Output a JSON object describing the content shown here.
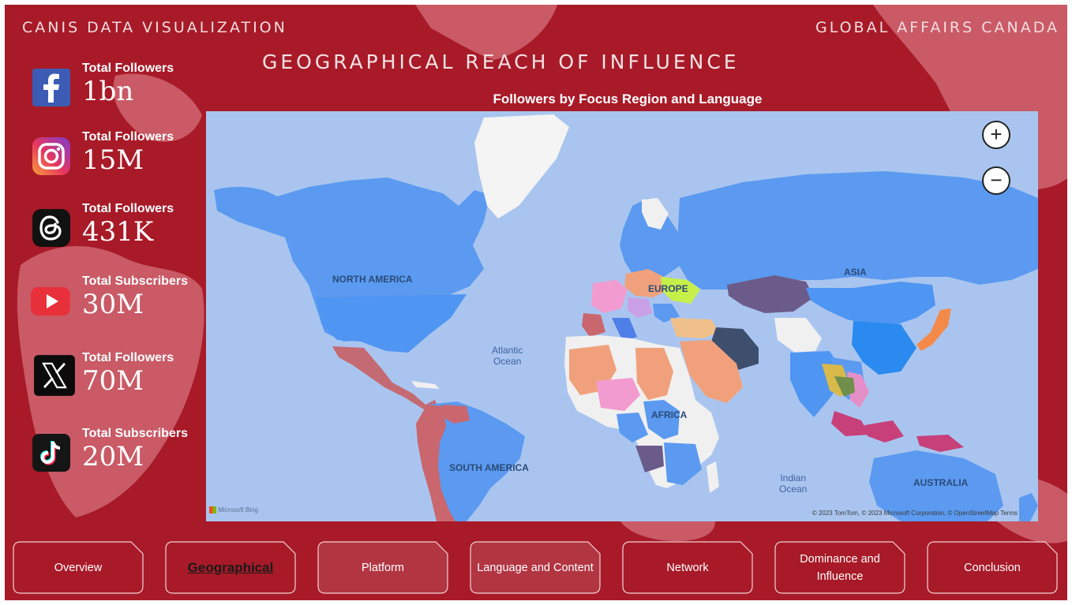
{
  "header": {
    "left_title": "Canis Data Visualization",
    "right_title": "Global Affairs Canada",
    "page_title": "Geographical Reach of Influence"
  },
  "stats": [
    {
      "platform": "facebook",
      "icon": "facebook-icon",
      "label": "Total Followers",
      "value": "1bn"
    },
    {
      "platform": "instagram",
      "icon": "instagram-icon",
      "label": "Total Followers",
      "value": "15M"
    },
    {
      "platform": "threads",
      "icon": "threads-icon",
      "label": "Total Followers",
      "value": "431K"
    },
    {
      "platform": "youtube",
      "icon": "youtube-icon",
      "label": "Total Subscribers",
      "value": "30M"
    },
    {
      "platform": "x",
      "icon": "x-icon",
      "label": "Total Followers",
      "value": "70M"
    },
    {
      "platform": "tiktok",
      "icon": "tiktok-icon",
      "label": "Total Subscribers",
      "value": "20M"
    }
  ],
  "map": {
    "title": "Followers by Focus Region and Language",
    "regions": {
      "north_america": "NORTH AMERICA",
      "south_america": "SOUTH AMERICA",
      "europe": "EUROPE",
      "africa": "AFRICA",
      "asia": "ASIA",
      "australia": "AUSTRALIA"
    },
    "oceans": {
      "atlantic_1": "Atlantic",
      "atlantic_2": "Ocean",
      "indian_1": "Indian",
      "indian_2": "Ocean"
    },
    "zoom_in": "+",
    "zoom_out": "−",
    "provider": "Microsoft Bing",
    "attribution": "© 2023 TomTom, © 2023 Microsoft Corporation, © OpenStreetMap  Terms"
  },
  "colors": {
    "background": "#a81a28",
    "ocean": "#a9c5ef",
    "land_default": "#5b9af0",
    "land_unassigned": "#f0f0f0"
  },
  "nav": [
    {
      "label": "Overview",
      "active": false
    },
    {
      "label": "Geographical",
      "active": true
    },
    {
      "label": "Platform",
      "active": false
    },
    {
      "label": "Language and Content",
      "active": false
    },
    {
      "label": "Network",
      "active": false
    },
    {
      "label": "Dominance and Influence",
      "active": false
    },
    {
      "label": "Conclusion",
      "active": false
    }
  ]
}
